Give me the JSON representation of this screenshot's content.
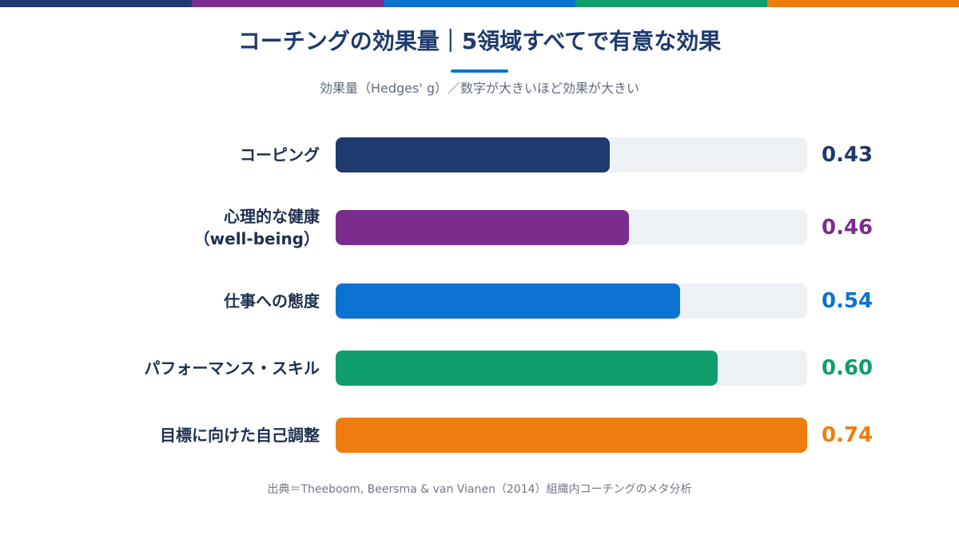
{
  "header": {
    "title": "コーチングの効果量｜5領域すべてで有意な効果",
    "subtitle": "効果量（Hedges' g）／数字が大きいほど効果が大きい"
  },
  "colors": {
    "navy": "#1e3a6e",
    "purple": "#7b2d8e",
    "blue": "#0b72d2",
    "green": "#0f9e6b",
    "orange": "#ef7c0e",
    "track": "#eef2f7"
  },
  "chart_data": {
    "type": "bar",
    "orientation": "horizontal",
    "title": "コーチングの効果量｜5領域すべてで有意な効果",
    "subtitle": "効果量（Hedges' g）／数字が大きいほど効果が大きい",
    "xlim": [
      0,
      0.74
    ],
    "grid": false,
    "bars": [
      {
        "label_lines": [
          "コーピング"
        ],
        "value": 0.43,
        "value_text": "0.43",
        "color": "#1e3a6e"
      },
      {
        "label_lines": [
          "心理的な健康",
          "（well-being）"
        ],
        "value": 0.46,
        "value_text": "0.46",
        "color": "#7b2d8e"
      },
      {
        "label_lines": [
          "仕事への態度"
        ],
        "value": 0.54,
        "value_text": "0.54",
        "color": "#0b72d2"
      },
      {
        "label_lines": [
          "パフォーマンス・スキル"
        ],
        "value": 0.6,
        "value_text": "0.60",
        "color": "#0f9e6b"
      },
      {
        "label_lines": [
          "目標に向けた自己調整"
        ],
        "value": 0.74,
        "value_text": "0.74",
        "color": "#ef7c0e"
      }
    ]
  },
  "footer": {
    "source": "出典＝Theeboom, Beersma & van Vianen（2014）組織内コーチングのメタ分析"
  }
}
